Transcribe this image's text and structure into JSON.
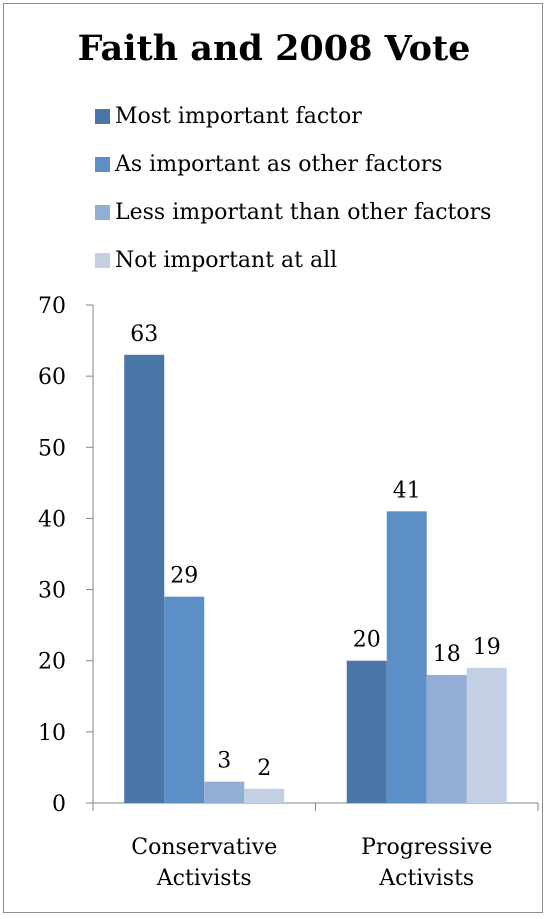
{
  "chart_data": {
    "type": "bar",
    "title": "Faith and 2008 Vote",
    "categories": [
      [
        "Conservative",
        "Activists"
      ],
      [
        "Progressive",
        "Activists"
      ]
    ],
    "series": [
      {
        "name": "Most important factor",
        "color": "#4a77a8",
        "values": [
          63,
          20
        ]
      },
      {
        "name": "As important as other factors",
        "color": "#5b8fc6",
        "values": [
          29,
          41
        ]
      },
      {
        "name": "Less important than other factors",
        "color": "#93aed4",
        "values": [
          3,
          18
        ]
      },
      {
        "name": "Not important at all",
        "color": "#c3cfe3",
        "values": [
          2,
          19
        ]
      }
    ],
    "ylim": [
      0,
      70
    ],
    "yticks": [
      0,
      10,
      20,
      30,
      40,
      50,
      60,
      70
    ],
    "legend_position": "top",
    "grid": false,
    "data_labels": true
  }
}
